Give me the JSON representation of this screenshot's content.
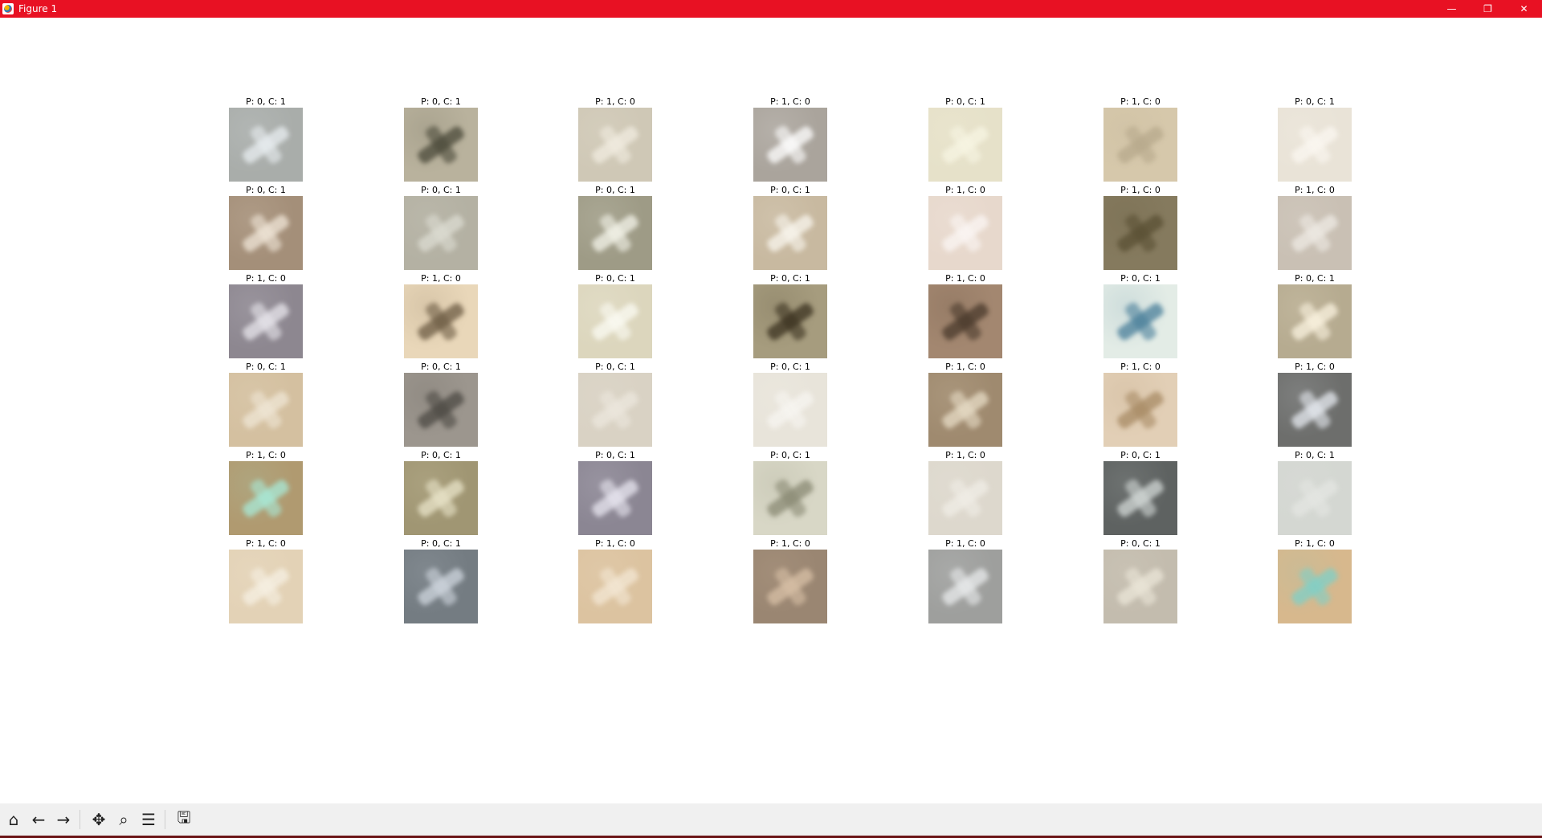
{
  "window": {
    "title": "Figure 1"
  },
  "window_controls": {
    "minimize_icon": "minimize-icon",
    "restore_icon": "restore-icon",
    "close_icon": "close-icon"
  },
  "toolbar": {
    "tools": [
      {
        "name": "home-button",
        "icon": "home-icon"
      },
      {
        "name": "back-button",
        "icon": "arrow-left-icon"
      },
      {
        "name": "forward-button",
        "icon": "arrow-right-icon"
      },
      {
        "name": "pan-button",
        "icon": "move-icon"
      },
      {
        "name": "zoom-button",
        "icon": "search-icon"
      },
      {
        "name": "configure-subplots-button",
        "icon": "sliders-icon"
      },
      {
        "name": "save-button",
        "icon": "floppy-disk-icon"
      }
    ]
  },
  "grid": {
    "rows": [
      [
        "P: 0, C: 1",
        "P: 0, C: 1",
        "P: 1, C: 0",
        "P: 1, C: 0",
        "P: 0, C: 1",
        "P: 1, C: 0",
        "P: 0, C: 1"
      ],
      [
        "P: 0, C: 1",
        "P: 0, C: 1",
        "P: 0, C: 1",
        "P: 0, C: 1",
        "P: 1, C: 0",
        "P: 1, C: 0",
        "P: 1, C: 0"
      ],
      [
        "P: 1, C: 0",
        "P: 1, C: 0",
        "P: 0, C: 1",
        "P: 0, C: 1",
        "P: 1, C: 0",
        "P: 0, C: 1",
        "P: 0, C: 1"
      ],
      [
        "P: 0, C: 1",
        "P: 0, C: 1",
        "P: 0, C: 1",
        "P: 0, C: 1",
        "P: 1, C: 0",
        "P: 1, C: 0",
        "P: 1, C: 0"
      ],
      [
        "P: 1, C: 0",
        "P: 0, C: 1",
        "P: 0, C: 1",
        "P: 0, C: 1",
        "P: 1, C: 0",
        "P: 0, C: 1",
        "P: 0, C: 1"
      ],
      [
        "P: 1, C: 0",
        "P: 0, C: 1",
        "P: 1, C: 0",
        "P: 1, C: 0",
        "P: 1, C: 0",
        "P: 0, C: 1",
        "P: 1, C: 0"
      ]
    ],
    "colors": [
      [
        "#a9adaa",
        "#b9b29d",
        "#cfc8b6",
        "#aaa49c",
        "#e6e1c9",
        "#d6c8ab",
        "#e9e3d7"
      ],
      [
        "#a48f79",
        "#b4b1a3",
        "#9e9b86",
        "#c8b9a0",
        "#e7d8cc",
        "#857a5e",
        "#c9c0b4"
      ],
      [
        "#8d8790",
        "#e9d7b9",
        "#dcd6bd",
        "#a69c7e",
        "#a38770",
        "#e3ece6",
        "#b6ab90"
      ],
      [
        "#d4c0a0",
        "#9c968e",
        "#d9d2c4",
        "#e8e4da",
        "#9f8a6f",
        "#e2cfb6",
        "#6d6e6c"
      ],
      [
        "#b09a70",
        "#a09673",
        "#8b8693",
        "#d8d7c6",
        "#ddd8cd",
        "#5e6261",
        "#d4d7d2"
      ],
      [
        "#e3d2b6",
        "#747c82",
        "#dcc3a0",
        "#9a8672",
        "#9e9f9d",
        "#c3bcae",
        "#d7b88d"
      ]
    ],
    "accents": [
      [
        "#e9eef1",
        "#4b4a3a",
        "#f1ece0",
        "#ffffff",
        "#f7f5e3",
        "#b7a98c",
        "#fbf7f1"
      ],
      [
        "#f0e6d8",
        "#dcdcd2",
        "#f4f4ea",
        "#f9f6ee",
        "#fbf6f4",
        "#5a5034",
        "#eeeae4"
      ],
      [
        "#e8e6ec",
        "#6d5c44",
        "#fbfbf3",
        "#3b3220",
        "#4a3a2c",
        "#4a7f9a",
        "#fbf3e0"
      ],
      [
        "#efe6d5",
        "#4d4a44",
        "#ece7dd",
        "#f7f5f1",
        "#e7dcc6",
        "#a88b65",
        "#e6eaf0"
      ],
      [
        "#a8ead8",
        "#e9e4c9",
        "#e8e6f0",
        "#8a8a74",
        "#f0ede6",
        "#d2d8d6",
        "#e4e6e2"
      ],
      [
        "#f6f0e3",
        "#cfd6de",
        "#f3e7d4",
        "#d8c0a6",
        "#e9ebec",
        "#ebe6d8",
        "#7fd0c8"
      ]
    ]
  }
}
